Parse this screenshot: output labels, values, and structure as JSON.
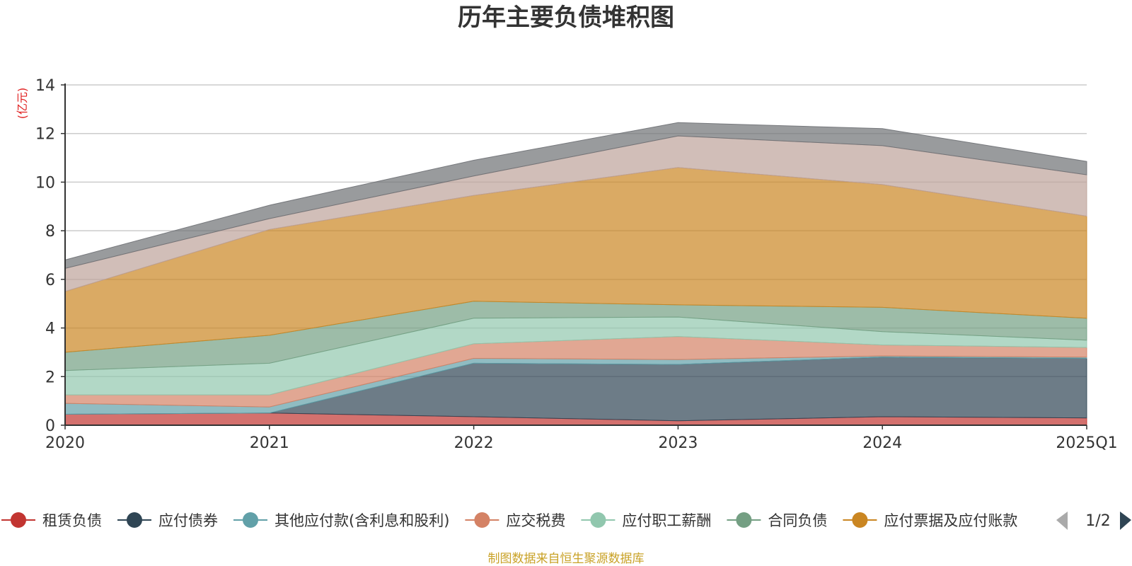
{
  "chart_data": {
    "type": "area",
    "stacked": true,
    "title": "历年主要负债堆积图",
    "ylabel": "(亿元)",
    "ylim": [
      0,
      14
    ],
    "yticks": [
      0,
      2,
      4,
      6,
      8,
      10,
      12,
      14
    ],
    "grid": true,
    "categories": [
      "2020",
      "2021",
      "2022",
      "2023",
      "2024",
      "2025Q1"
    ],
    "series": [
      {
        "name": "租赁负债",
        "color": "#c23531",
        "values": [
          0.45,
          0.5,
          0.35,
          0.18,
          0.35,
          0.3
        ]
      },
      {
        "name": "应付债券",
        "color": "#2f4554",
        "values": [
          0.0,
          0.0,
          2.2,
          2.32,
          2.45,
          2.45
        ]
      },
      {
        "name": "其他应付款(含利息和股利)",
        "color": "#61a0a8",
        "values": [
          0.45,
          0.25,
          0.2,
          0.2,
          0.05,
          0.05
        ]
      },
      {
        "name": "应交税费",
        "color": "#d48265",
        "values": [
          0.35,
          0.5,
          0.6,
          0.95,
          0.45,
          0.4
        ]
      },
      {
        "name": "应付职工薪酬",
        "color": "#91c7ae",
        "values": [
          1.0,
          1.3,
          1.05,
          0.8,
          0.55,
          0.3
        ]
      },
      {
        "name": "合同负债",
        "color": "#749f83",
        "values": [
          0.75,
          1.15,
          0.7,
          0.5,
          1.0,
          0.9
        ]
      },
      {
        "name": "应付票据及应付账款",
        "color": "#ca8622",
        "values": [
          2.5,
          4.35,
          4.35,
          5.65,
          5.05,
          4.2
        ]
      },
      {
        "name": "",
        "color": "#bda29a",
        "values": [
          0.95,
          0.45,
          0.8,
          1.3,
          1.6,
          1.7
        ]
      },
      {
        "name": "",
        "color": "#6e7074",
        "values": [
          0.35,
          0.55,
          0.65,
          0.55,
          0.7,
          0.55
        ]
      }
    ],
    "legend": {
      "position": "bottom",
      "visible_names": [
        "租赁负债",
        "应付债券",
        "其他应付款(含利息和股利)",
        "应交税费",
        "应付职工薪酬",
        "合同负债",
        "应付票据及应付账款"
      ],
      "page": "1/2"
    },
    "source": "制图数据来自恒生聚源数据库"
  }
}
